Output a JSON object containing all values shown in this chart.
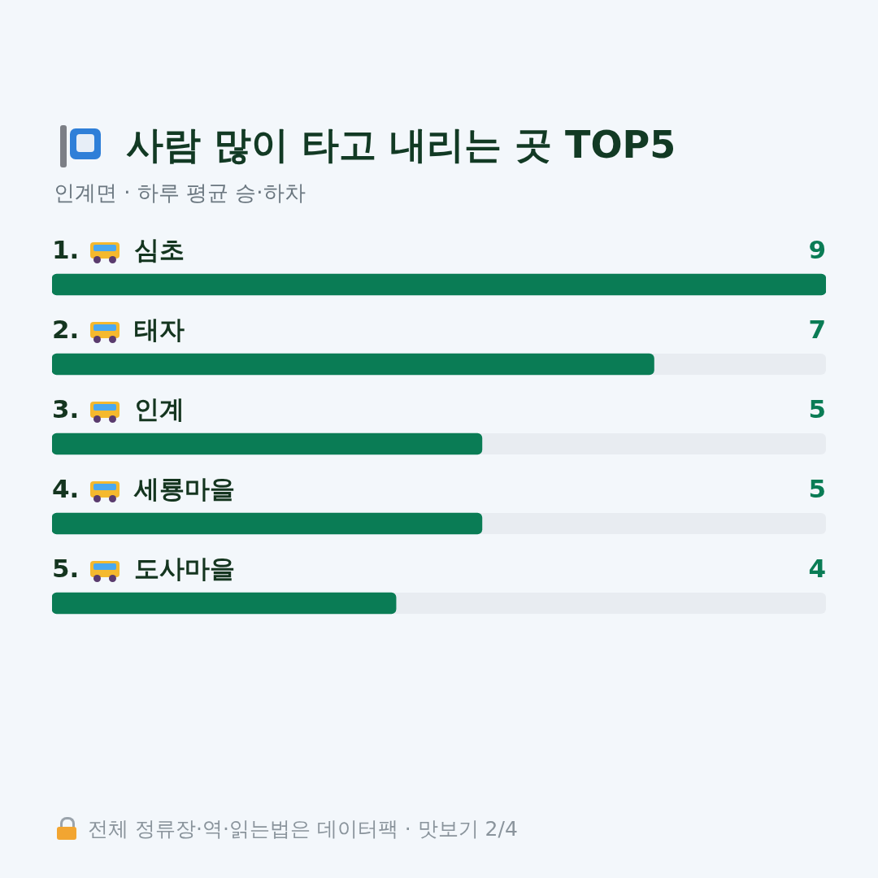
{
  "chart_data": {
    "type": "bar",
    "orientation": "horizontal",
    "title": "사람 많이 타고 내리는 곳 TOP5",
    "subtitle": "인계면 · 하루 평균 승·하차",
    "categories": [
      "1. 심초",
      "2. 태자",
      "3. 인계",
      "4. 세룡마을",
      "5. 도사마을"
    ],
    "values": [
      9,
      7,
      5,
      5,
      4
    ],
    "color": "#0a7c55",
    "xlim": [
      0,
      9
    ],
    "tick_labels": false,
    "legend": false,
    "data_labels": true,
    "annotations": [
      "전체 정류장·역·읽는법은 데이터팩 · 맛보기 2/4"
    ]
  }
}
